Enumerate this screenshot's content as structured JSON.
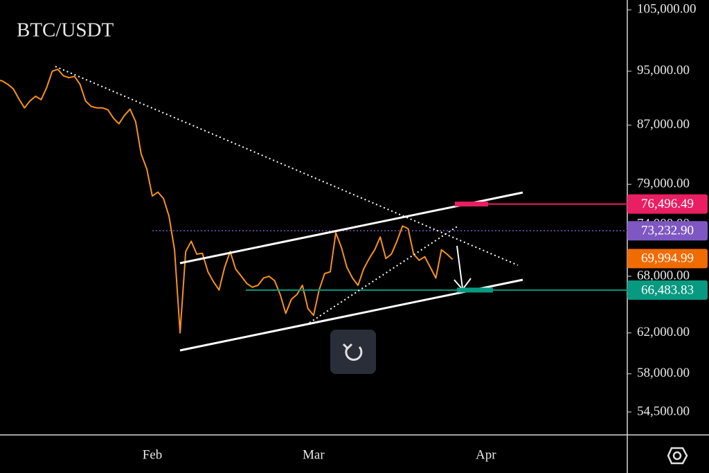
{
  "chart_data": {
    "type": "line",
    "title": "BTC/USDT",
    "color": "#f7931a",
    "log": true,
    "ylim": [
      52500,
      106700
    ],
    "yticks": [
      {
        "value": 105000,
        "label": "105,000.00"
      },
      {
        "value": 95000,
        "label": "95,000.00"
      },
      {
        "value": 87000,
        "label": "87,000.00"
      },
      {
        "value": 79000,
        "label": "79,000.00"
      },
      {
        "value": 74000,
        "label": "74,000.00"
      },
      {
        "value": 68000,
        "label": "68,000.00"
      },
      {
        "value": 62000,
        "label": "62,000.00"
      },
      {
        "value": 58000,
        "label": "58,000.00"
      },
      {
        "value": 54500,
        "label": "54,500.00"
      }
    ],
    "categories": [
      null,
      null,
      null,
      null,
      null,
      null,
      null,
      null,
      null,
      null,
      null,
      null,
      null,
      null,
      null,
      null,
      null,
      null,
      null,
      null,
      null,
      null,
      null,
      null,
      null,
      null,
      null,
      null,
      "Feb",
      null,
      null,
      null,
      null,
      null,
      null,
      null,
      null,
      null,
      null,
      null,
      null,
      null,
      null,
      null,
      null,
      null,
      null,
      null,
      null,
      null,
      null,
      null,
      null,
      null,
      null,
      null,
      null,
      "Mar",
      null,
      null,
      null,
      null,
      null,
      null,
      null,
      null,
      null,
      null,
      null,
      null,
      null,
      null,
      null,
      null,
      null,
      null,
      null,
      null,
      null,
      null,
      null,
      null,
      null,
      null,
      null,
      null,
      null,
      null,
      "Apr",
      null,
      null,
      null,
      null,
      null,
      null
    ],
    "values": [
      93700,
      93500,
      93000,
      92300,
      90800,
      89500,
      90500,
      91200,
      90700,
      92500,
      95000,
      95300,
      94300,
      94000,
      94200,
      93000,
      90500,
      89700,
      89500,
      89500,
      89200,
      88000,
      87200,
      88400,
      89300,
      87500,
      83000,
      81000,
      77500,
      78000,
      77200,
      75000,
      71000,
      62000,
      70800,
      72000,
      70500,
      70600,
      68500,
      67400,
      66500,
      69000,
      70800,
      68800,
      68000,
      67200,
      66800,
      67000,
      67800,
      68000,
      67500,
      66000,
      64000,
      65500,
      66000,
      67000,
      64500,
      63800,
      66500,
      68300,
      68500,
      73000,
      71300,
      69000,
      67800,
      67000,
      68800,
      70000,
      71000,
      72500,
      70000,
      70500,
      72000,
      73800,
      73500,
      70500,
      69800,
      70200,
      69000,
      67800,
      71000,
      70500,
      69900,
      null,
      null,
      null,
      null,
      null,
      null,
      null,
      null,
      null,
      null,
      null,
      null
    ],
    "price_lines": [
      {
        "value": 76496.49,
        "label": "76,496.49",
        "color": "#e91e63"
      },
      {
        "value": 73232.9,
        "label": "73,232.90",
        "color": "#7e57c2"
      },
      {
        "value": 69994.99,
        "label": "69,994.99",
        "color": "#f06b00"
      },
      {
        "value": 66483.83,
        "label": "66,483.83",
        "color": "#089981"
      }
    ]
  }
}
